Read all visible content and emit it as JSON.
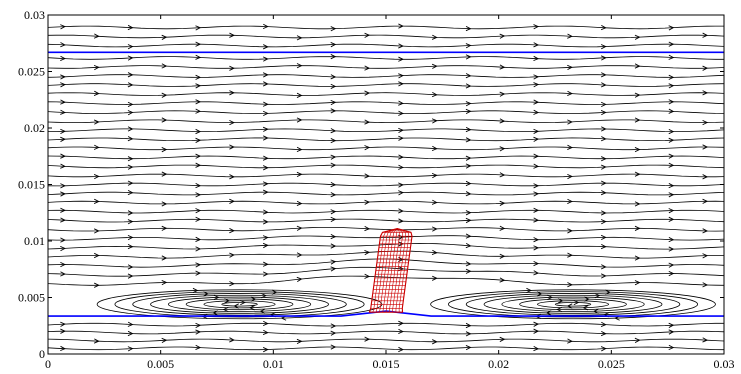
{
  "chart_data": {
    "type": "line",
    "title": "",
    "xlabel": "",
    "ylabel": "",
    "xlim": [
      0,
      0.03
    ],
    "ylim": [
      0,
      0.03
    ],
    "x_ticks": [
      "0",
      "0.005",
      "0.01",
      "0.015",
      "0.02",
      "0.025",
      "0.03"
    ],
    "y_ticks": [
      "0",
      "0.005",
      "0.01",
      "0.015",
      "0.02",
      "0.025",
      "0.03"
    ],
    "grid": false,
    "legend": "none",
    "series": [
      {
        "kind": "boundary-line",
        "color": "#0000ff",
        "x": [
          0,
          0.03
        ],
        "y": [
          0.0267,
          0.0267
        ]
      },
      {
        "kind": "boundary-line",
        "color": "#0000ff",
        "x": [
          0,
          0.013,
          0.015,
          0.017,
          0.03
        ],
        "y": [
          0.00335,
          0.00335,
          0.0038,
          0.00335,
          0.00335
        ]
      }
    ],
    "streamlines": {
      "color": "#000000",
      "arrow_direction": "+x",
      "upper_y": [
        0.0289,
        0.0281,
        0.0273,
        0.0262,
        0.0254,
        0.0246,
        0.0238,
        0.023,
        0.0222,
        0.0214,
        0.0206,
        0.0198,
        0.019,
        0.0182,
        0.0174,
        0.0166,
        0.0158,
        0.015,
        0.0142,
        0.0134,
        0.0126,
        0.0118,
        0.011,
        0.0102,
        0.0094,
        0.0086,
        0.0078,
        0.007,
        0.0062
      ],
      "lower_y": [
        0.0026,
        0.0019,
        0.0012,
        0.0005
      ],
      "recirculation_loops": [
        {
          "cx": 0.0085,
          "cy": 0.0044,
          "count": 8
        },
        {
          "cx": 0.0233,
          "cy": 0.0044,
          "count": 8
        }
      ]
    },
    "obstacle": {
      "color": "#cc0000",
      "shape": "tilted-column-mesh",
      "bottom_center": [
        0.015,
        0.0037
      ],
      "top_center": [
        0.0155,
        0.0111
      ],
      "width": 0.0014
    }
  }
}
